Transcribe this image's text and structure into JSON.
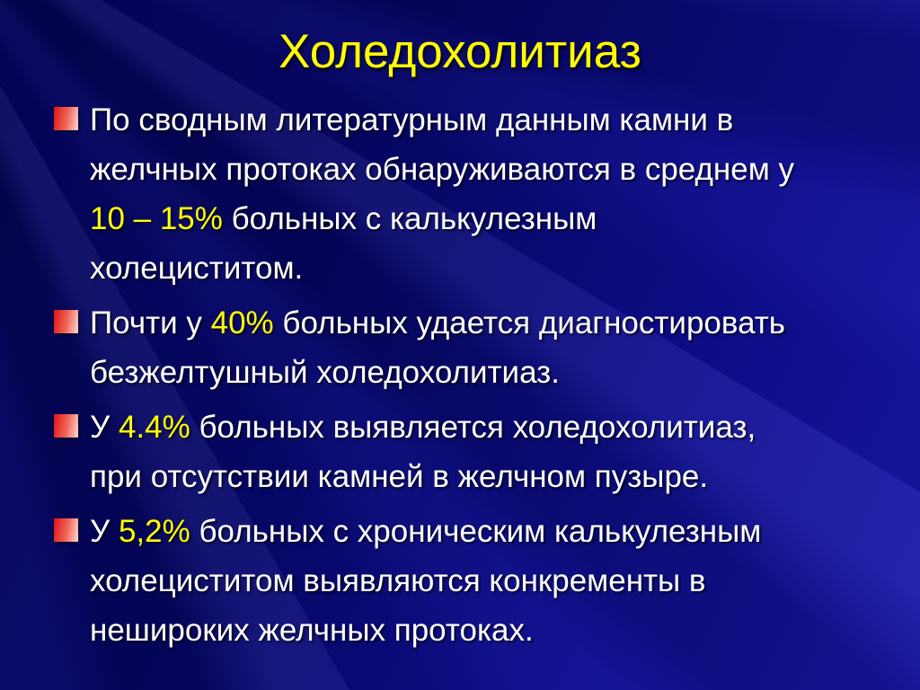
{
  "slide": {
    "title": "Холедохолитиаз",
    "bullets": [
      {
        "segments": [
          {
            "t": "По сводным литературным данным камни в\nжелчных протоках обнаруживаются в среднем у\n",
            "hl": false
          },
          {
            "t": "10 – 15%",
            "hl": true
          },
          {
            "t": " больных с калькулезным\nхолециститом.",
            "hl": false
          }
        ]
      },
      {
        "segments": [
          {
            "t": "Почти у ",
            "hl": false
          },
          {
            "t": "40%",
            "hl": true
          },
          {
            "t": " больных удается диагностировать\nбезжелтушный холедохолитиаз.",
            "hl": false
          }
        ]
      },
      {
        "segments": [
          {
            "t": "У ",
            "hl": false
          },
          {
            "t": "4.4%",
            "hl": true
          },
          {
            "t": " больных выявляется холедохолитиаз,\nпри отсутствии камней в желчном пузыре.",
            "hl": false
          }
        ]
      },
      {
        "segments": [
          {
            "t": "У ",
            "hl": false
          },
          {
            "t": "5,2%",
            "hl": true
          },
          {
            "t": " больных с хроническим калькулезным\nхолециститом выявляются конкременты в\nнешироких желчных протоках.",
            "hl": false
          }
        ]
      }
    ],
    "colors": {
      "title_text": "#ffff00",
      "body_text": "#ffffff",
      "highlight_text": "#ffff00",
      "bullet_gradient_start": "#df1313",
      "bullet_gradient_end": "#ffd9d2",
      "background_dark": "#04045a",
      "background_light": "#1818ac"
    }
  }
}
